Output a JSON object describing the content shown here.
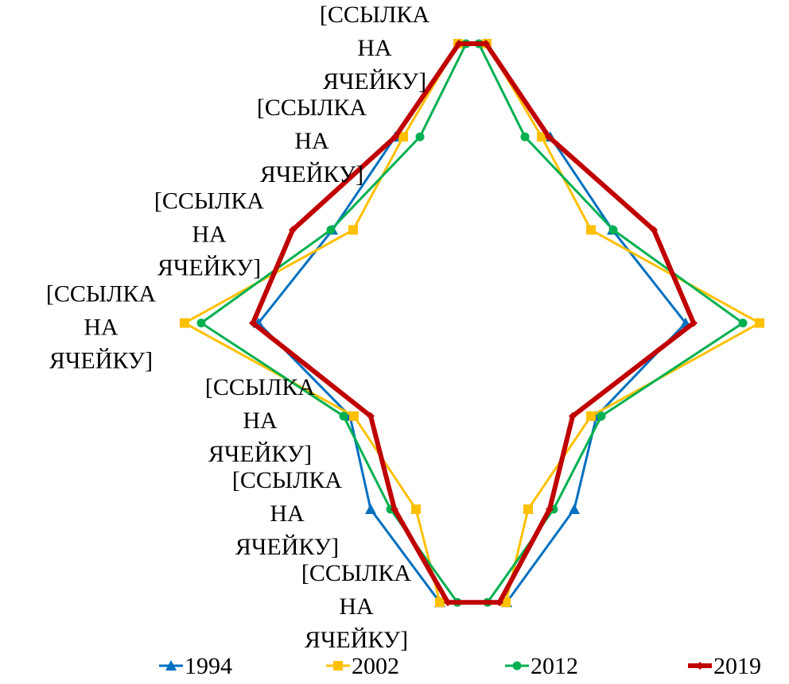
{
  "chart_data": {
    "type": "line",
    "categories": [
      null,
      null,
      null,
      null,
      null,
      null,
      null
    ],
    "labels": [
      "[ССЫЛКА НА ЯЧЕЙКУ]",
      "[ССЫЛКА НА ЯЧЕЙКУ]",
      "[ССЫЛКА НА ЯЧЕЙКУ]",
      "[ССЫЛКА НА ЯЧЕЙКУ]",
      "[ССЫЛКА НА ЯЧЕЙКУ]",
      "[ССЫЛКА НА ЯЧЕЙКУ]",
      "[ССЫЛКА НА ЯЧЕЙКУ]"
    ],
    "xlim": [
      -400,
      400
    ],
    "legend": "bottom",
    "series": [
      {
        "name": "1994",
        "color": "#0070c0",
        "marker": "triangle",
        "left": [
          -16,
          -97,
          -176,
          -269,
          -154,
          -128,
          -41
        ],
        "right": [
          16,
          98,
          176,
          268,
          156,
          128,
          43
        ]
      },
      {
        "name": "2002",
        "color": "#ffc000",
        "marker": "square",
        "left": [
          -18,
          -87,
          -150,
          -362,
          -149,
          -71,
          -41
        ],
        "right": [
          18,
          87,
          149,
          361,
          149,
          70,
          42
        ]
      },
      {
        "name": "2012",
        "color": "#00b050",
        "marker": "circle",
        "left": [
          -8,
          -66,
          -178,
          -341,
          -162,
          -103,
          -19
        ],
        "right": [
          8,
          66,
          177,
          340,
          162,
          102,
          19
        ]
      },
      {
        "name": "2019",
        "color": "#c00000",
        "marker": "diamond",
        "left": [
          -17,
          -97,
          -226,
          -276,
          -128,
          -98,
          -31
        ],
        "right": [
          17,
          96,
          228,
          278,
          126,
          97,
          34
        ]
      }
    ]
  }
}
